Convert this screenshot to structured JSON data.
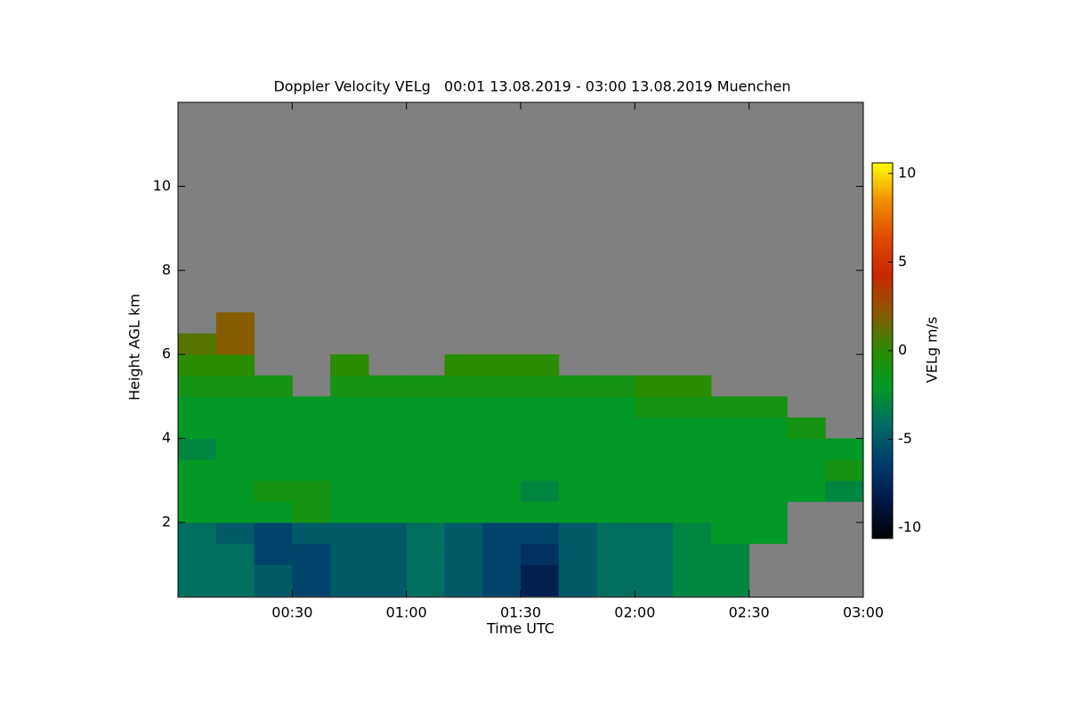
{
  "chart_data": {
    "type": "heatmap",
    "title": "Doppler Velocity VELg   00:01 13.08.2019 - 03:00 13.08.2019 Muenchen",
    "xlabel": "Time UTC",
    "ylabel": "Height AGL km",
    "colorbar_label": "VELg m/s",
    "xlim": [
      0,
      180
    ],
    "ylim": [
      0.22,
      12
    ],
    "xticks": [
      {
        "value": 30,
        "label": "00:30"
      },
      {
        "value": 60,
        "label": "01:00"
      },
      {
        "value": 90,
        "label": "01:30"
      },
      {
        "value": 120,
        "label": "02:00"
      },
      {
        "value": 150,
        "label": "02:30"
      },
      {
        "value": 180,
        "label": "03:00"
      }
    ],
    "yticks": [
      2,
      4,
      6,
      8,
      10
    ],
    "clim": [
      -10.6,
      10.6
    ],
    "cticks": [
      -10,
      -5,
      0,
      5,
      10
    ],
    "colormap": [
      "#000000",
      "#001848",
      "#003c6c",
      "#006a64",
      "#009a28",
      "#2a8c00",
      "#8a5a00",
      "#c82800",
      "#e04a00",
      "#f09000",
      "#ffff00"
    ],
    "background": "#808080",
    "x_bins": [
      0,
      10,
      20,
      30,
      40,
      50,
      60,
      70,
      80,
      90,
      100,
      110,
      120,
      130,
      140,
      150,
      160,
      170,
      180
    ],
    "y_bins": [
      0.25,
      1,
      1.5,
      2,
      2.5,
      3,
      3.5,
      4,
      4.5,
      5,
      5.5,
      6,
      6.5,
      7
    ],
    "z": [
      [
        -4,
        -4,
        -5,
        -6,
        -5,
        -5,
        -4,
        -5,
        -6,
        -8,
        -5,
        -4,
        -4,
        -3,
        -3,
        null,
        null,
        null
      ],
      [
        -4,
        -4,
        -6,
        -6,
        -5,
        -5,
        -4,
        -5,
        -6,
        -7,
        -5,
        -4,
        -4,
        -3,
        -3,
        null,
        null,
        null
      ],
      [
        -4,
        -5,
        -6,
        -5,
        -5,
        -5,
        -4,
        -5,
        -6,
        -6,
        -5,
        -4,
        -4,
        -3,
        -2,
        -2,
        null,
        null
      ],
      [
        -2,
        -2,
        -2,
        -1,
        -2,
        -2,
        -2,
        -2,
        -2,
        -2,
        -2,
        -2,
        -2,
        -2,
        -2,
        -2,
        null,
        null
      ],
      [
        -2,
        -2,
        -1,
        -1,
        -2,
        -2,
        -2,
        -2,
        -2,
        -3,
        -2,
        -2,
        -2,
        -2,
        -2,
        -2,
        -2,
        -3
      ],
      [
        -2,
        -2,
        -2,
        -2,
        -2,
        -2,
        -2,
        -2,
        -2,
        -2,
        -2,
        -2,
        -2,
        -2,
        -2,
        -2,
        -2,
        -1
      ],
      [
        -3,
        -2,
        -2,
        -2,
        -2,
        -2,
        -2,
        -2,
        -2,
        -2,
        -2,
        -2,
        -2,
        -2,
        -2,
        -2,
        -2,
        -2
      ],
      [
        -2,
        -2,
        -2,
        -2,
        -2,
        -2,
        -2,
        -2,
        -2,
        -2,
        -2,
        -2,
        -2,
        -2,
        -2,
        -2,
        -1,
        null
      ],
      [
        -2,
        -2,
        -2,
        -2,
        -2,
        -2,
        -2,
        -2,
        -2,
        -2,
        -2,
        -2,
        -1,
        -1,
        -1,
        -1,
        null,
        null
      ],
      [
        -1,
        -1,
        -1,
        null,
        -1,
        -1,
        -1,
        -1,
        -1,
        -1,
        -1,
        -1,
        0,
        0,
        null,
        null,
        null,
        null
      ],
      [
        0,
        0,
        null,
        null,
        0,
        null,
        null,
        0,
        0,
        0,
        null,
        null,
        null,
        null,
        null,
        null,
        null,
        null
      ],
      [
        1,
        2,
        null,
        null,
        null,
        null,
        null,
        null,
        null,
        null,
        null,
        null,
        null,
        null,
        null,
        null,
        null,
        null
      ],
      [
        null,
        2,
        null,
        null,
        null,
        null,
        null,
        null,
        null,
        null,
        null,
        null,
        null,
        null,
        null,
        null,
        null,
        null
      ]
    ]
  }
}
